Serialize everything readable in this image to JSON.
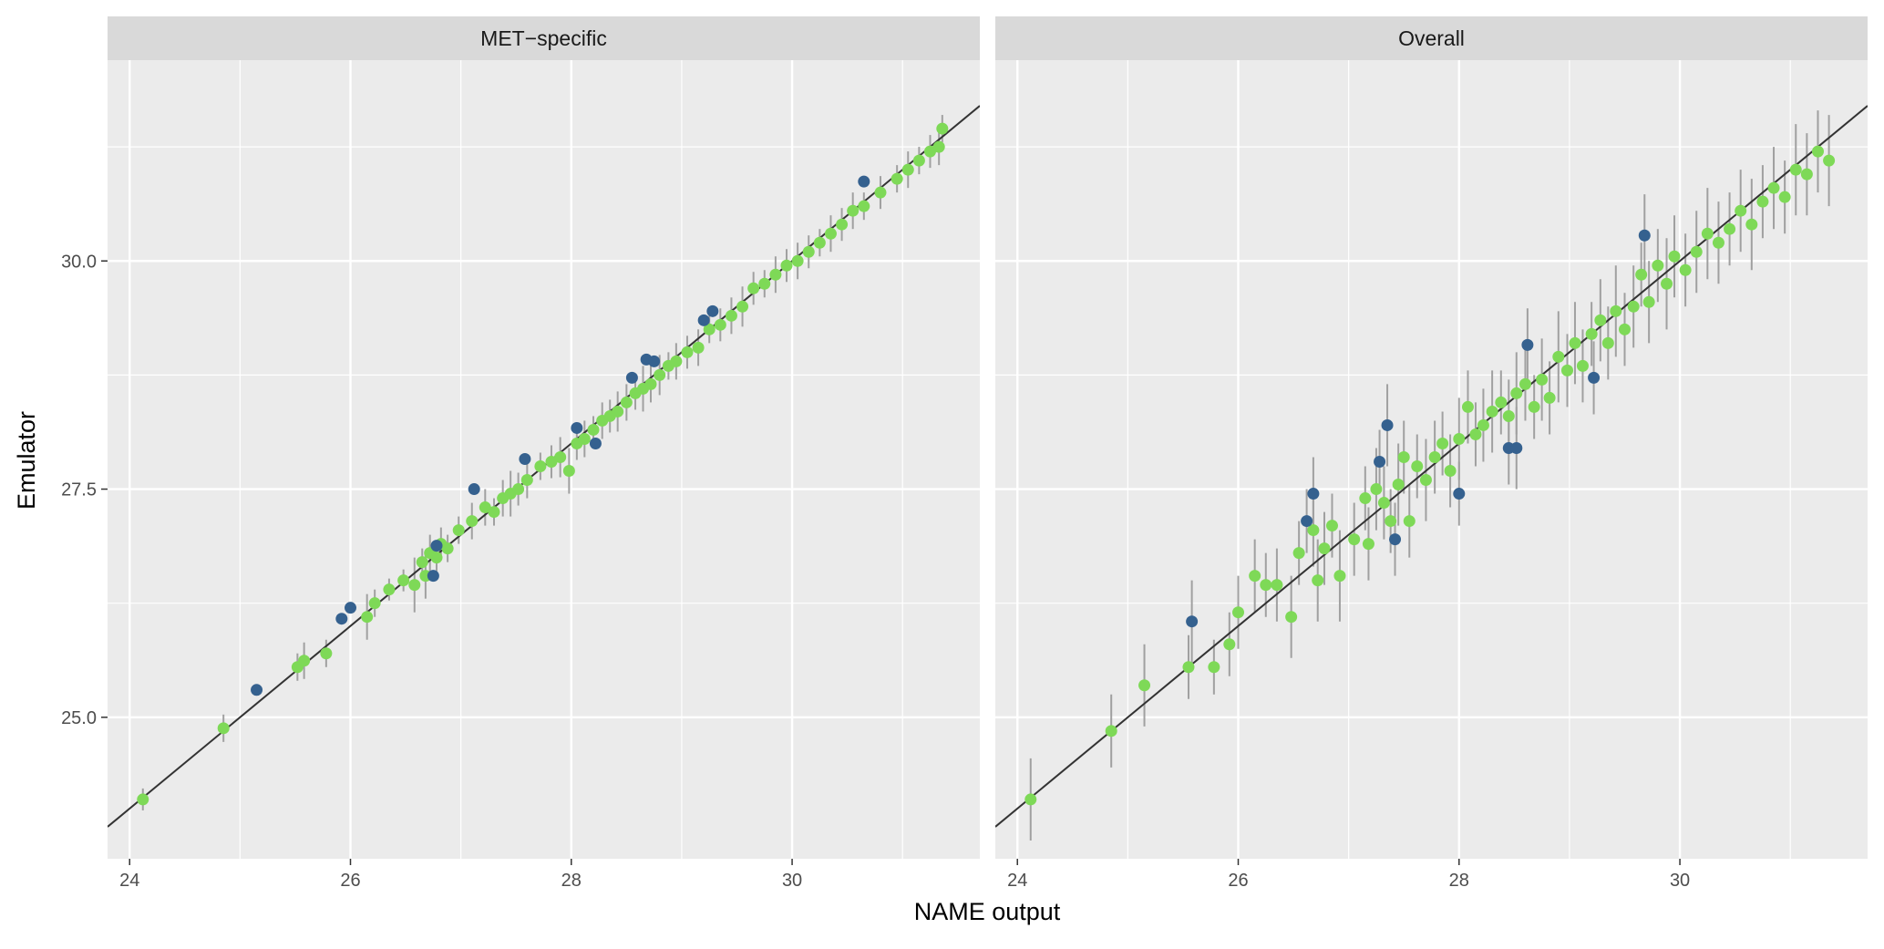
{
  "chart_data": [
    {
      "type": "scatter",
      "title": "MET−specific",
      "xlabel": "NAME output",
      "ylabel": "Emulator",
      "xlim": [
        23.8,
        31.7
      ],
      "ylim": [
        23.45,
        32.2
      ],
      "xticks": [
        "24",
        "26",
        "28",
        "30"
      ],
      "yticks": [
        "25.0",
        "27.5",
        "30.0"
      ],
      "grid": true,
      "reference_line": "y = x",
      "colors": {
        "in_range": "#7ed957",
        "out_of_range": "#35618f",
        "error_bar": "#a0a0a0",
        "line": "#333333"
      },
      "series": [
        {
          "color": "#7ed957",
          "x": [
            24.12,
            24.85,
            25.52,
            25.58,
            25.78,
            26.15,
            26.22,
            26.35,
            26.48,
            26.58,
            26.65,
            26.68,
            26.72,
            26.78,
            26.82,
            26.88,
            26.98,
            27.1,
            27.22,
            27.3,
            27.38,
            27.45,
            27.52,
            27.6,
            27.72,
            27.82,
            27.9,
            27.98,
            28.05,
            28.12,
            28.2,
            28.28,
            28.35,
            28.42,
            28.5,
            28.58,
            28.65,
            28.72,
            28.8,
            28.88,
            28.95,
            29.05,
            29.15,
            29.25,
            29.35,
            29.45,
            29.55,
            29.65,
            29.75,
            29.85,
            29.95,
            30.05,
            30.15,
            30.25,
            30.35,
            30.45,
            30.55,
            30.65,
            30.8,
            30.95,
            31.05,
            31.15,
            31.25,
            31.33,
            31.36
          ],
          "y": [
            24.1,
            24.88,
            25.55,
            25.62,
            25.7,
            26.1,
            26.25,
            26.4,
            26.5,
            26.45,
            26.7,
            26.55,
            26.8,
            26.75,
            26.9,
            26.85,
            27.05,
            27.15,
            27.3,
            27.25,
            27.4,
            27.45,
            27.5,
            27.6,
            27.75,
            27.8,
            27.85,
            27.7,
            28.0,
            28.05,
            28.15,
            28.25,
            28.3,
            28.35,
            28.45,
            28.55,
            28.6,
            28.65,
            28.75,
            28.85,
            28.9,
            29.0,
            29.05,
            29.25,
            29.3,
            29.4,
            29.5,
            29.7,
            29.75,
            29.85,
            29.95,
            30.0,
            30.1,
            30.2,
            30.3,
            30.4,
            30.55,
            30.6,
            30.75,
            30.9,
            31.0,
            31.1,
            31.2,
            31.25,
            31.45
          ],
          "errors": [
            0.12,
            0.15,
            0.15,
            0.2,
            0.15,
            0.25,
            0.15,
            0.12,
            0.12,
            0.3,
            0.15,
            0.25,
            0.2,
            0.15,
            0.18,
            0.15,
            0.15,
            0.2,
            0.2,
            0.15,
            0.2,
            0.25,
            0.18,
            0.2,
            0.15,
            0.18,
            0.22,
            0.25,
            0.18,
            0.2,
            0.15,
            0.2,
            0.18,
            0.22,
            0.2,
            0.18,
            0.25,
            0.2,
            0.22,
            0.15,
            0.2,
            0.18,
            0.2,
            0.15,
            0.18,
            0.2,
            0.22,
            0.18,
            0.15,
            0.2,
            0.18,
            0.2,
            0.18,
            0.15,
            0.2,
            0.18,
            0.2,
            0.15,
            0.18,
            0.15,
            0.2,
            0.15,
            0.18,
            0.2,
            0.15
          ]
        },
        {
          "color": "#35618f",
          "x": [
            25.15,
            25.92,
            26.0,
            26.75,
            26.78,
            27.12,
            27.58,
            28.05,
            28.22,
            28.55,
            28.68,
            28.75,
            29.2,
            29.28,
            30.65
          ],
          "y": [
            25.3,
            26.08,
            26.2,
            26.55,
            26.88,
            27.5,
            27.83,
            28.17,
            28.0,
            28.72,
            28.92,
            28.9,
            29.35,
            29.45,
            30.87
          ],
          "errors": [
            0,
            0,
            0,
            0,
            0,
            0,
            0,
            0,
            0,
            0,
            0,
            0,
            0,
            0,
            0
          ]
        }
      ]
    },
    {
      "type": "scatter",
      "title": "Overall",
      "xlabel": "NAME output",
      "ylabel": "Emulator",
      "xlim": [
        23.8,
        31.7
      ],
      "ylim": [
        23.45,
        32.2
      ],
      "xticks": [
        "24",
        "26",
        "28",
        "30"
      ],
      "yticks": [
        "25.0",
        "27.5",
        "30.0"
      ],
      "grid": true,
      "reference_line": "y = x",
      "series": [
        {
          "color": "#7ed957",
          "x": [
            24.12,
            24.85,
            25.15,
            25.55,
            25.78,
            25.92,
            26.0,
            26.15,
            26.25,
            26.35,
            26.48,
            26.55,
            26.68,
            26.72,
            26.78,
            26.85,
            26.92,
            27.05,
            27.15,
            27.18,
            27.25,
            27.32,
            27.38,
            27.45,
            27.5,
            27.55,
            27.62,
            27.7,
            27.78,
            27.85,
            27.92,
            28.0,
            28.08,
            28.15,
            28.22,
            28.3,
            28.38,
            28.45,
            28.52,
            28.6,
            28.68,
            28.75,
            28.82,
            28.9,
            28.98,
            29.05,
            29.12,
            29.2,
            29.28,
            29.35,
            29.42,
            29.5,
            29.58,
            29.65,
            29.72,
            29.8,
            29.88,
            29.95,
            30.05,
            30.15,
            30.25,
            30.35,
            30.45,
            30.55,
            30.65,
            30.75,
            30.85,
            30.95,
            31.05,
            31.15,
            31.25,
            31.35
          ],
          "y": [
            24.1,
            24.85,
            25.35,
            25.55,
            25.55,
            25.8,
            26.15,
            26.55,
            26.45,
            26.45,
            26.1,
            26.8,
            27.05,
            26.5,
            26.85,
            27.1,
            26.55,
            26.95,
            27.4,
            26.9,
            27.5,
            27.35,
            27.15,
            27.55,
            27.85,
            27.15,
            27.75,
            27.6,
            27.85,
            28.0,
            27.7,
            28.05,
            28.4,
            28.1,
            28.2,
            28.35,
            28.45,
            28.3,
            28.55,
            28.65,
            28.4,
            28.7,
            28.5,
            28.95,
            28.8,
            29.1,
            28.85,
            29.2,
            29.35,
            29.1,
            29.45,
            29.25,
            29.5,
            29.85,
            29.55,
            29.95,
            29.75,
            30.05,
            29.9,
            30.1,
            30.3,
            30.2,
            30.35,
            30.55,
            30.4,
            30.65,
            30.8,
            30.7,
            31.0,
            30.95,
            31.2,
            31.1
          ],
          "errors": [
            0.45,
            0.4,
            0.45,
            0.35,
            0.3,
            0.35,
            0.4,
            0.4,
            0.35,
            0.4,
            0.45,
            0.35,
            0.4,
            0.45,
            0.4,
            0.35,
            0.5,
            0.4,
            0.35,
            0.4,
            0.45,
            0.4,
            0.35,
            0.45,
            0.4,
            0.4,
            0.35,
            0.45,
            0.4,
            0.35,
            0.4,
            0.45,
            0.4,
            0.35,
            0.4,
            0.45,
            0.35,
            0.4,
            0.45,
            0.4,
            0.35,
            0.45,
            0.4,
            0.5,
            0.4,
            0.45,
            0.4,
            0.35,
            0.45,
            0.4,
            0.5,
            0.4,
            0.45,
            0.35,
            0.45,
            0.4,
            0.5,
            0.45,
            0.4,
            0.45,
            0.5,
            0.45,
            0.4,
            0.45,
            0.5,
            0.4,
            0.45,
            0.4,
            0.5,
            0.45,
            0.45,
            0.5
          ]
        },
        {
          "color": "#35618f",
          "x": [
            25.58,
            26.62,
            26.68,
            27.35,
            27.28,
            27.42,
            28.0,
            28.45,
            28.52,
            28.62,
            29.22,
            29.68
          ],
          "y": [
            26.05,
            27.15,
            27.45,
            28.2,
            27.8,
            26.95,
            27.45,
            27.95,
            27.95,
            29.08,
            28.72,
            30.28
          ],
          "errors": [
            0.45,
            0.35,
            0.4,
            0.45,
            0.35,
            0.4,
            0.35,
            0.4,
            0.45,
            0.4,
            0.4,
            0.45
          ]
        }
      ]
    }
  ]
}
